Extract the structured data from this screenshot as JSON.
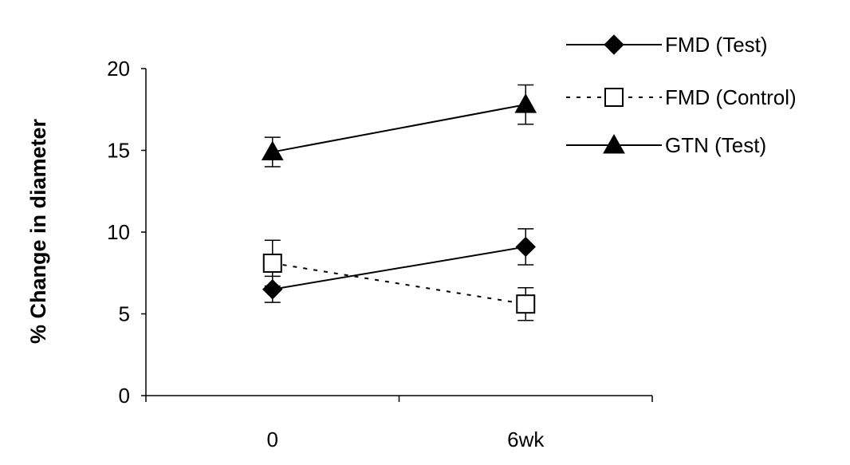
{
  "chart_data": {
    "type": "line",
    "title": "",
    "xlabel": "",
    "ylabel": "% Change in diameter",
    "categories": [
      "0",
      "6wk"
    ],
    "ylim": [
      0,
      20
    ],
    "yticks": [
      0,
      5,
      10,
      15,
      20
    ],
    "grid": false,
    "legend_position": "top-right",
    "series": [
      {
        "name": "FMD (Test)",
        "values": [
          6.5,
          9.1
        ],
        "errors": [
          0.8,
          1.1
        ],
        "marker": "diamond-filled",
        "line_style": "solid",
        "color": "#000000"
      },
      {
        "name": "FMD (Control)",
        "values": [
          8.1,
          5.6
        ],
        "errors": [
          1.4,
          1.0
        ],
        "marker": "square-open",
        "line_style": "dotted",
        "color": "#000000"
      },
      {
        "name": "GTN (Test)",
        "values": [
          14.9,
          17.8
        ],
        "errors": [
          0.9,
          1.2
        ],
        "marker": "triangle-filled",
        "line_style": "solid",
        "color": "#000000"
      }
    ]
  }
}
